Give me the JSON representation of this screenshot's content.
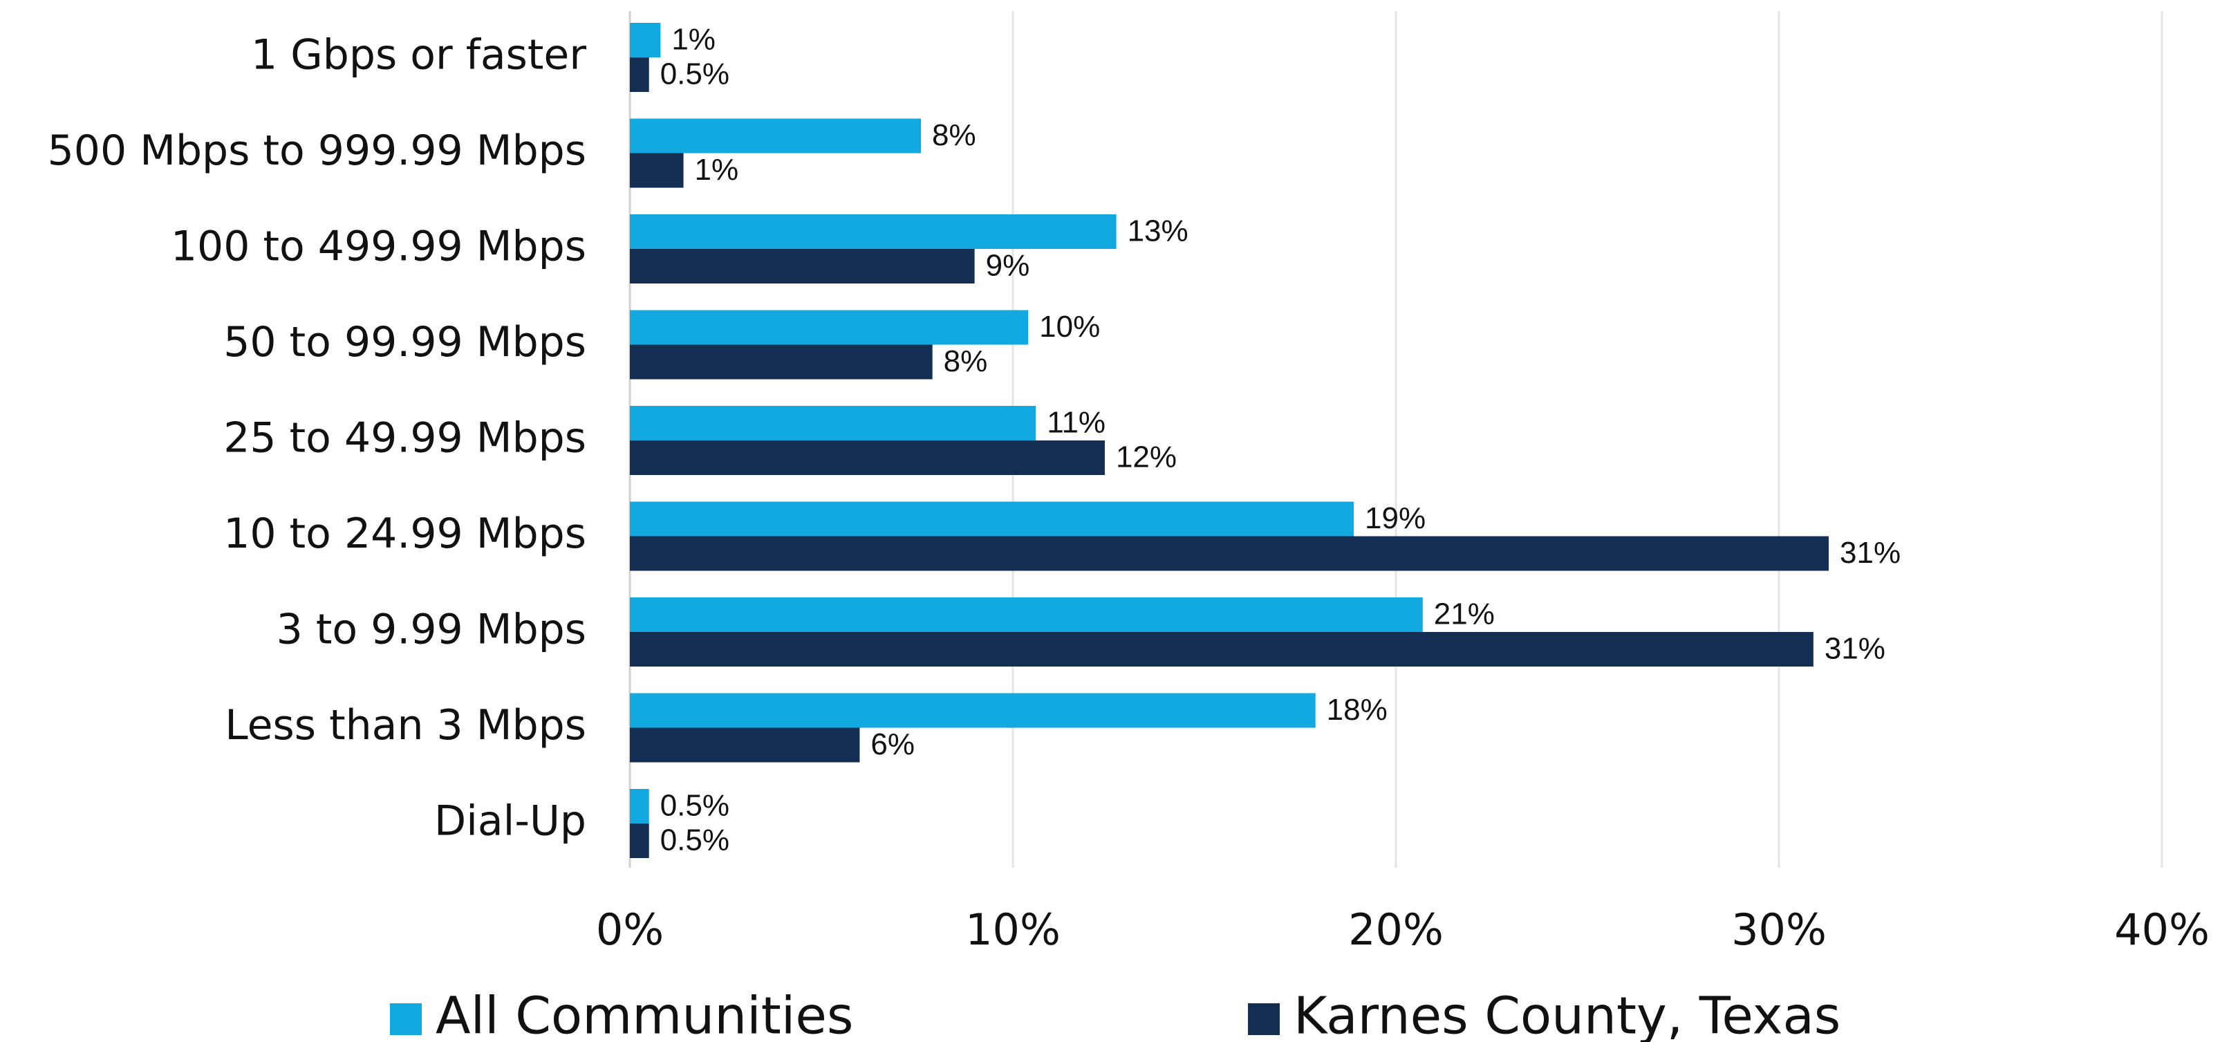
{
  "chart_data": {
    "type": "bar",
    "orientation": "horizontal",
    "categories": [
      "1 Gbps or faster",
      "500 Mbps to 999.99 Mbps",
      "100 to 499.99 Mbps",
      "50 to 99.99 Mbps",
      "25 to 49.99 Mbps",
      "10 to 24.99 Mbps",
      "3 to 9.99 Mbps",
      "Less than 3 Mbps",
      "Dial-Up"
    ],
    "series": [
      {
        "name": "All Communities",
        "color": "#12a8e0",
        "values": [
          0.8,
          7.6,
          12.7,
          10.4,
          10.6,
          18.9,
          20.7,
          17.9,
          0.5
        ],
        "value_labels": [
          "1%",
          "8%",
          "13%",
          "10%",
          "11%",
          "19%",
          "21%",
          "18%",
          "0.5%"
        ]
      },
      {
        "name": "Karnes County, Texas",
        "color": "#142d52",
        "values": [
          0.5,
          1.4,
          9.0,
          7.9,
          12.4,
          31.3,
          30.9,
          6.0,
          0.5
        ],
        "value_labels": [
          "0.5%",
          "1%",
          "9%",
          "8%",
          "12%",
          "31%",
          "31%",
          "6%",
          "0.5%"
        ]
      }
    ],
    "xlim": [
      0,
      40
    ],
    "xticks": [
      {
        "value": 0,
        "label": "0%"
      },
      {
        "value": 10,
        "label": "10%"
      },
      {
        "value": 20,
        "label": "20%"
      },
      {
        "value": 30,
        "label": "30%"
      },
      {
        "value": 40,
        "label": "40%"
      }
    ],
    "grid": true,
    "legend": "bottom"
  }
}
